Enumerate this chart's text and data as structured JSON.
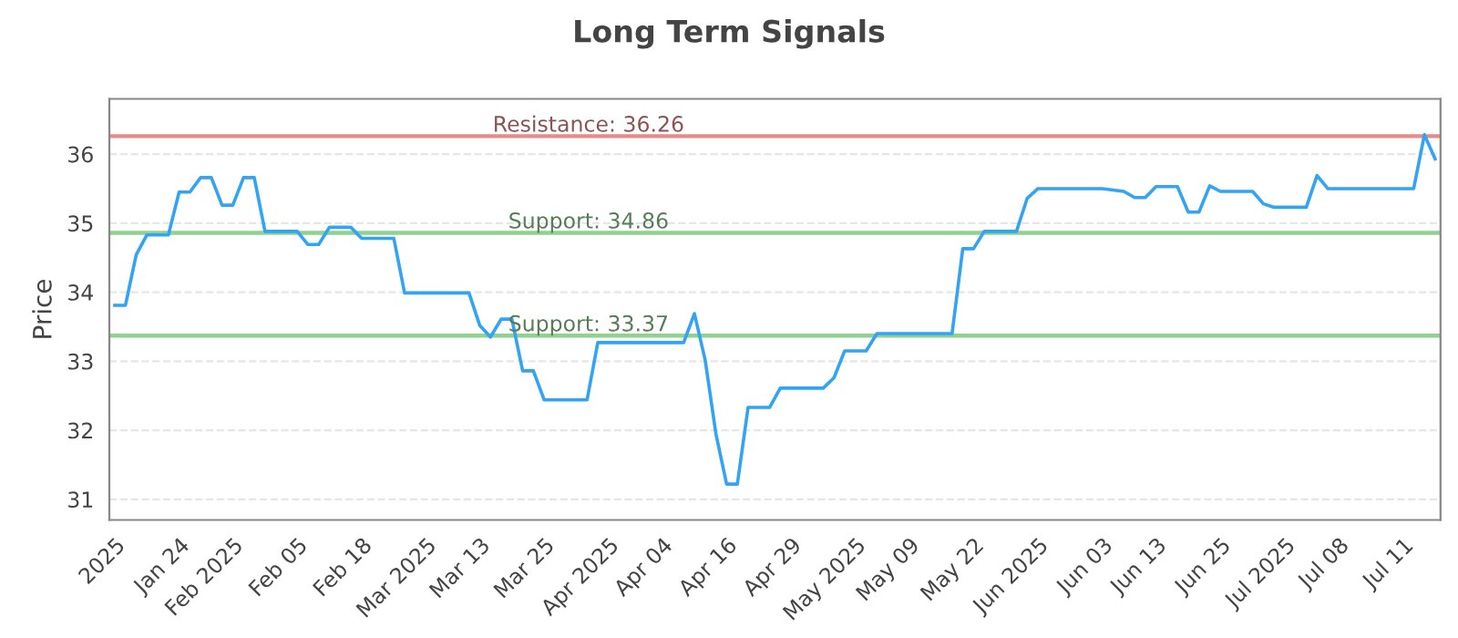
{
  "chart_data": {
    "type": "line",
    "title": "Long Term Signals",
    "ylabel": "Price",
    "categories": [
      "2025",
      null,
      null,
      null,
      null,
      null,
      "Jan 24",
      null,
      null,
      null,
      null,
      "Feb 2025",
      null,
      null,
      null,
      null,
      null,
      "Feb 05",
      null,
      null,
      null,
      null,
      null,
      "Feb 18",
      null,
      null,
      null,
      null,
      null,
      "Mar 2025",
      null,
      null,
      null,
      null,
      "Mar 13",
      null,
      null,
      null,
      null,
      null,
      "Mar 25",
      null,
      null,
      null,
      null,
      null,
      "Apr 2025",
      null,
      null,
      null,
      null,
      "Apr 04",
      null,
      null,
      null,
      null,
      null,
      "Apr 16",
      null,
      null,
      null,
      null,
      null,
      "Apr 29",
      null,
      null,
      null,
      null,
      null,
      "May 2025",
      null,
      null,
      null,
      null,
      "May 09",
      null,
      null,
      null,
      null,
      null,
      "May 22",
      null,
      null,
      null,
      null,
      null,
      "Jun 2025",
      null,
      null,
      null,
      null,
      null,
      "Jun 03",
      null,
      null,
      null,
      null,
      "Jun 13",
      null,
      null,
      null,
      null,
      null,
      "Jun 25",
      null,
      null,
      null,
      null,
      null,
      "Jul 2025",
      null,
      null,
      null,
      null,
      "Jul 08",
      null,
      null,
      null,
      null,
      null,
      "Jul 11",
      null,
      null,
      null
    ],
    "series": [
      {
        "color": "#33a3f4",
        "values": [
          33.81,
          33.81,
          34.54,
          34.83,
          34.83,
          34.83,
          35.45,
          35.45,
          35.66,
          35.66,
          35.26,
          35.26,
          35.66,
          35.66,
          34.88,
          34.88,
          34.88,
          34.88,
          34.69,
          34.69,
          34.94,
          34.94,
          34.94,
          34.78,
          34.78,
          34.78,
          34.78,
          33.99,
          33.99,
          33.99,
          33.99,
          33.99,
          33.99,
          33.99,
          33.52,
          33.35,
          33.61,
          33.61,
          32.86,
          32.86,
          32.44,
          32.44,
          32.44,
          32.44,
          32.44,
          33.27,
          33.27,
          33.27,
          33.27,
          33.27,
          33.27,
          33.27,
          33.27,
          33.27,
          33.69,
          33.02,
          31.95,
          31.22,
          31.22,
          32.33,
          32.33,
          32.33,
          32.61,
          32.61,
          32.61,
          32.61,
          32.61,
          32.76,
          33.15,
          33.15,
          33.15,
          33.4,
          33.4,
          33.4,
          33.4,
          33.4,
          33.4,
          33.4,
          33.4,
          34.63,
          34.63,
          34.88,
          34.88,
          34.88,
          34.88,
          35.36,
          35.5,
          35.5,
          35.5,
          35.5,
          35.5,
          35.5,
          35.5,
          35.48,
          35.46,
          35.37,
          35.37,
          35.53,
          35.53,
          35.53,
          35.16,
          35.16,
          35.54,
          35.46,
          35.46,
          35.46,
          35.46,
          35.28,
          35.23,
          35.23,
          35.23,
          35.23,
          35.69,
          35.5,
          35.5,
          35.5,
          35.5,
          35.5,
          35.5,
          35.5,
          35.5,
          35.5,
          36.28,
          35.93
        ]
      }
    ],
    "ylim": [
      30.7,
      36.8
    ],
    "yticks": [
      31,
      32,
      33,
      34,
      35,
      36
    ],
    "grid": "y",
    "marker": "none",
    "line_style": "solid",
    "legend": false,
    "ref_lines": [
      {
        "axis": "y",
        "value": 36.26,
        "label": "Resistance: 36.26",
        "color": "#e88a8a"
      },
      {
        "axis": "y",
        "value": 34.86,
        "label": "Support: 34.86",
        "color": "#8fd18f"
      },
      {
        "axis": "y",
        "value": 33.37,
        "label": "Support: 33.37",
        "color": "#8fd18f"
      }
    ]
  }
}
